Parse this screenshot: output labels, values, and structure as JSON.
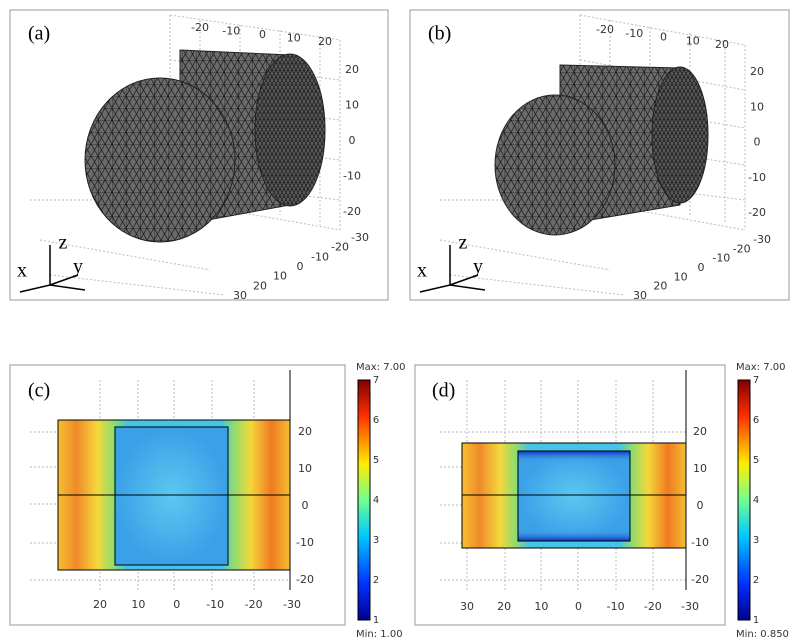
{
  "panels": [
    {
      "label": "(a)",
      "axes": {
        "x": "x",
        "y": "y",
        "z": "z"
      },
      "top_ticks": [
        -20,
        -10,
        0,
        10,
        20
      ],
      "right_ticks": [
        20,
        10,
        0,
        -10,
        -20
      ],
      "bottom_ticks": [
        30,
        20,
        10,
        0,
        -10,
        -20,
        -30
      ]
    },
    {
      "label": "(b)",
      "axes": {
        "x": "x",
        "y": "y",
        "z": "z"
      },
      "top_ticks": [
        -20,
        -10,
        0,
        10,
        20
      ],
      "right_ticks": [
        20,
        10,
        0,
        -10,
        -20
      ],
      "bottom_ticks": [
        30,
        20,
        10,
        0,
        -10,
        -20,
        -30
      ]
    },
    {
      "label": "(c)",
      "x_ticks": [
        20,
        10,
        0,
        -10,
        -20,
        -30
      ],
      "y_ticks": [
        20,
        10,
        0,
        -10,
        -20
      ],
      "colorbar": {
        "max": "Max: 7.00",
        "min": "Min: 1.00",
        "ticks": [
          7,
          6,
          5,
          4,
          3,
          2,
          1
        ]
      }
    },
    {
      "label": "(d)",
      "x_ticks": [
        30,
        20,
        10,
        0,
        -10,
        -20,
        -30
      ],
      "y_ticks": [
        20,
        10,
        0,
        -10,
        -20
      ],
      "colorbar": {
        "max": "Max: 7.00",
        "min": "Min: 0.850",
        "ticks": [
          7,
          6,
          5,
          4,
          3,
          2,
          1
        ]
      }
    }
  ]
}
